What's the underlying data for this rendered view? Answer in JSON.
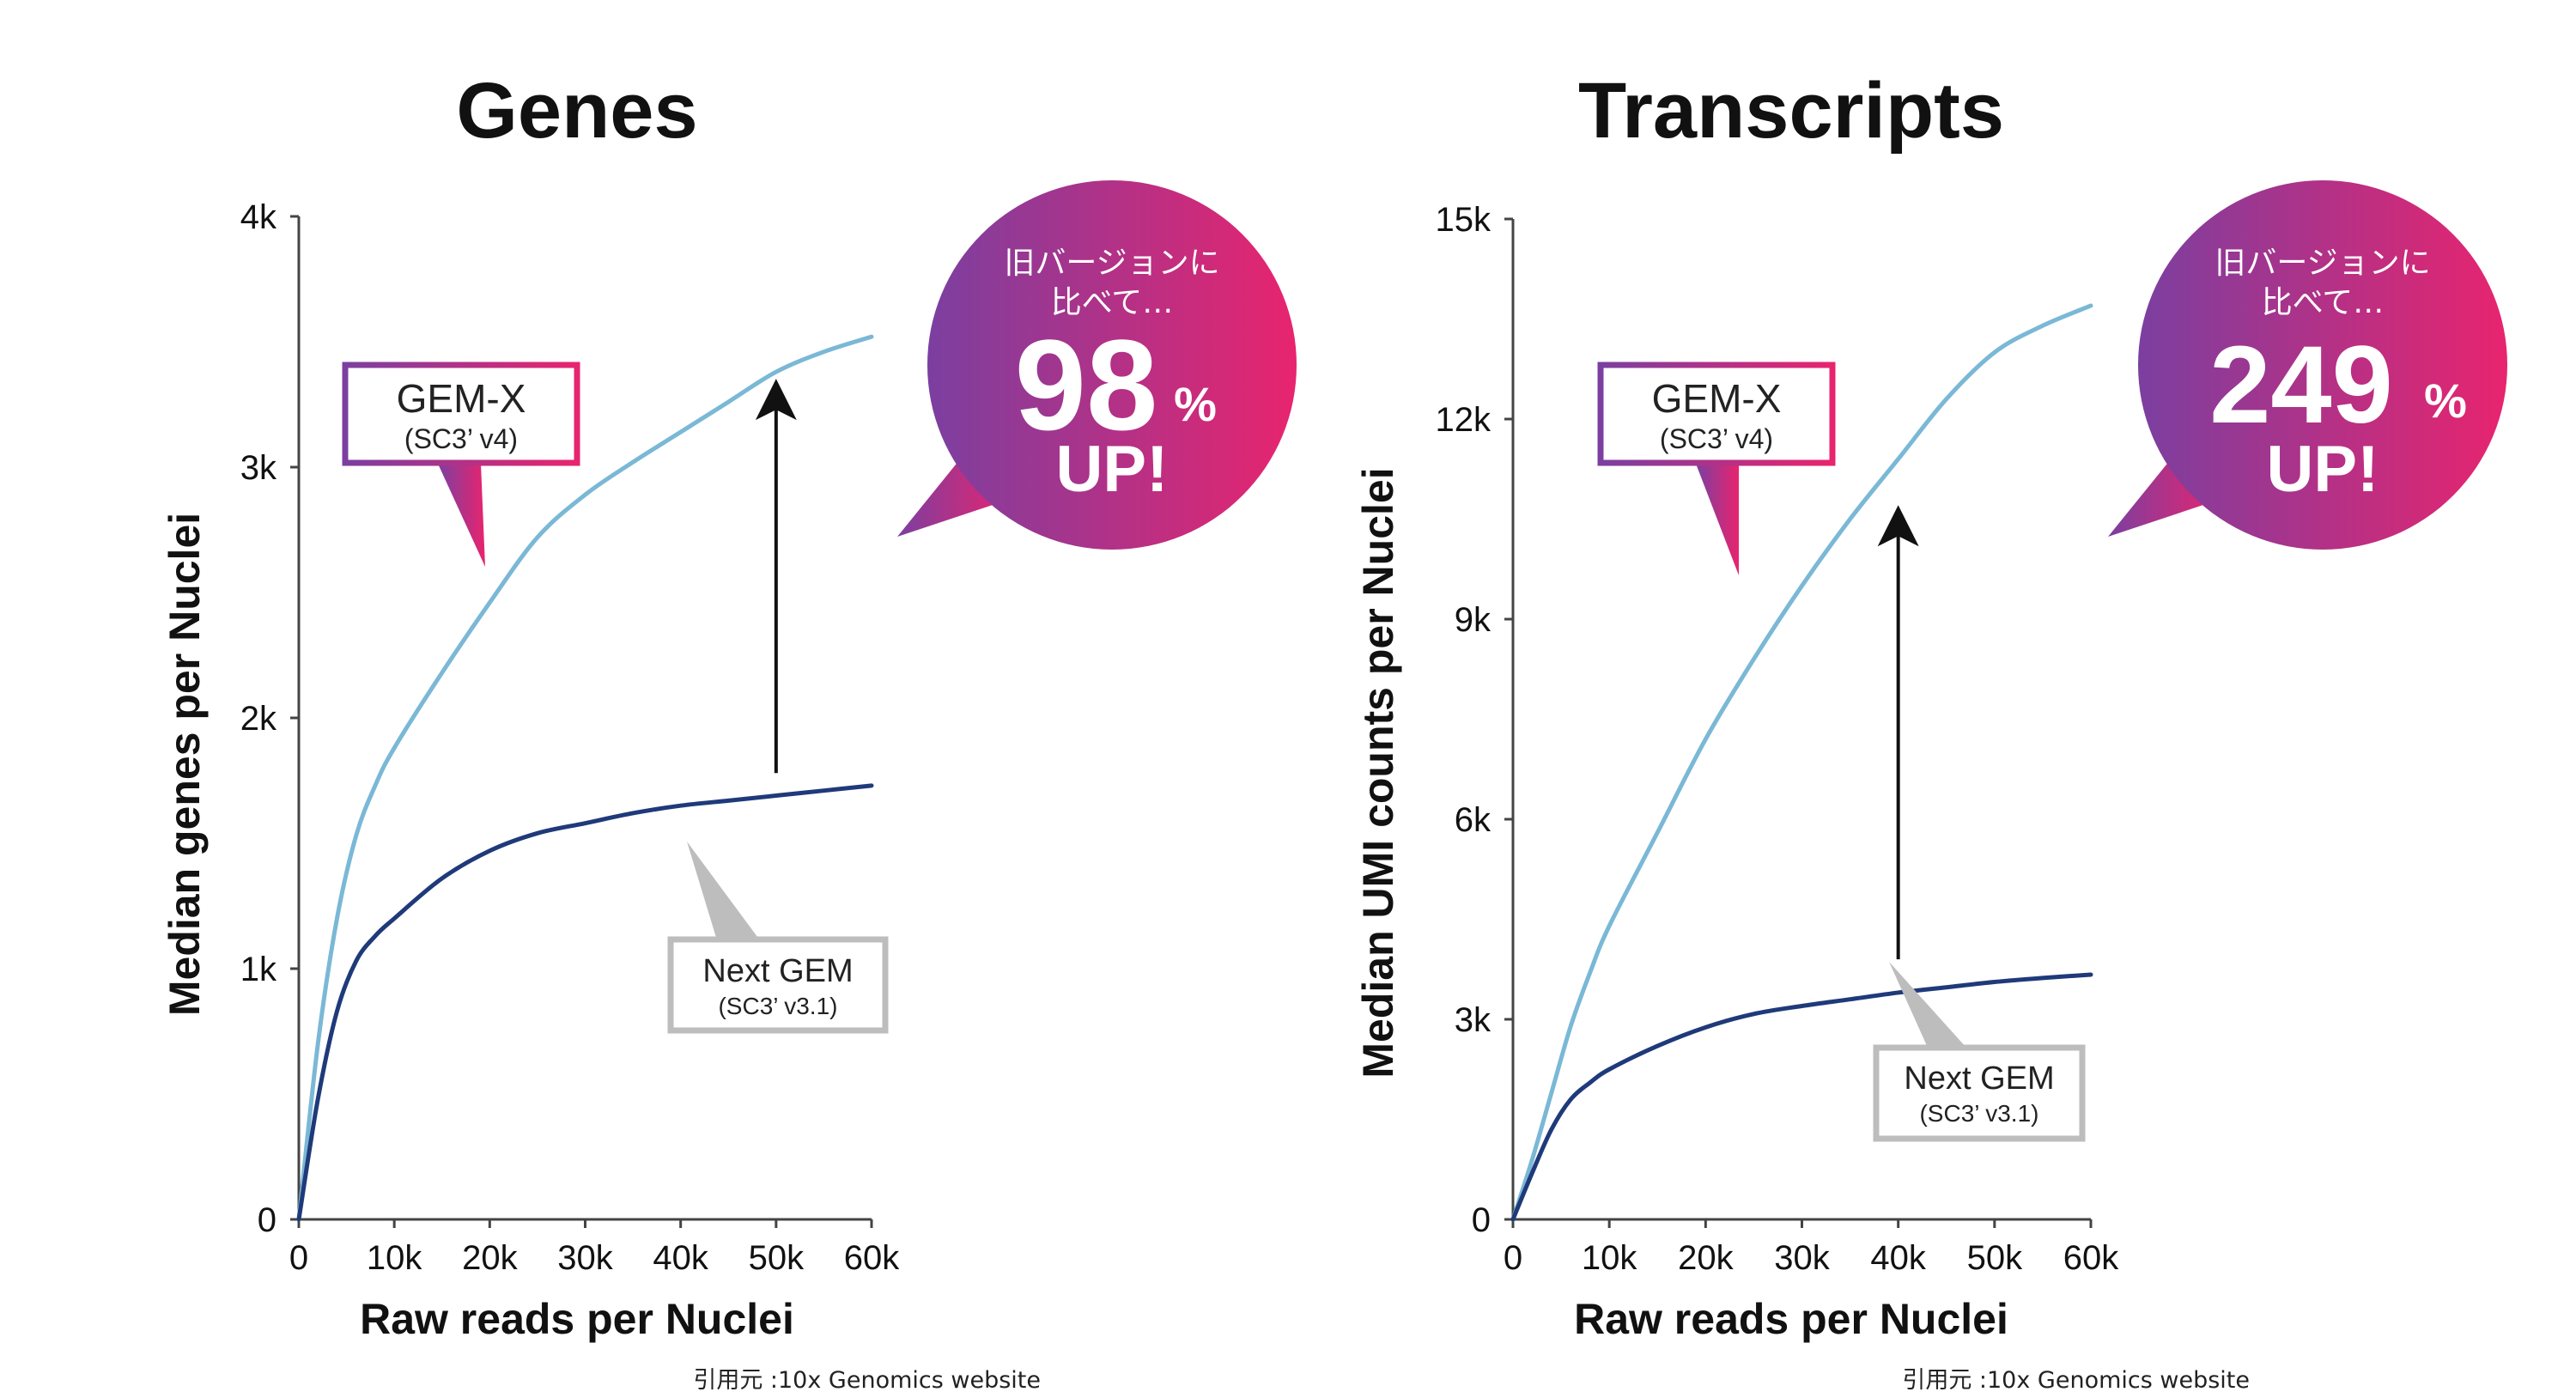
{
  "charts": [
    {
      "title": "Genes",
      "ylabel": "Median genes per Nuclei",
      "xlabel": "Raw reads per Nuclei",
      "gemx_box": {
        "main": "GEM-X",
        "sub": "(SC3’ v4)"
      },
      "nextgem_box": {
        "main": "Next GEM",
        "sub": "(SC3’ v3.1)"
      },
      "bubble": {
        "line1": "旧バージョンに",
        "line2": "比べて…",
        "number": "98",
        "percent": "%",
        "up": "UP!"
      },
      "source": "引用元 :10x Genomics website"
    },
    {
      "title": "Transcripts",
      "ylabel": "Median UMI counts per Nuclei",
      "xlabel": "Raw reads per Nuclei",
      "gemx_box": {
        "main": "GEM-X",
        "sub": "(SC3’ v4)"
      },
      "nextgem_box": {
        "main": "Next GEM",
        "sub": "(SC3’ v3.1)"
      },
      "bubble": {
        "line1": "旧バージョンに",
        "line2": "比べて…",
        "number": "249",
        "percent": "%",
        "up": "UP!"
      },
      "source": "引用元 :10x Genomics website"
    }
  ],
  "colors": {
    "gemx_line": "#7ab8d6",
    "nextgem_line": "#1f3a7a",
    "gradient_start": "#7b3fa0",
    "gradient_end": "#e8246e",
    "box_gray": "#bdbdbd",
    "axis": "#444444"
  },
  "chart_data": [
    {
      "type": "line",
      "title": "Genes",
      "xlabel": "Raw reads per Nuclei",
      "ylabel": "Median genes per Nuclei",
      "xlim": [
        0,
        60000
      ],
      "ylim": [
        0,
        4000
      ],
      "x_ticks": [
        0,
        10000,
        20000,
        30000,
        40000,
        50000,
        60000
      ],
      "x_tick_labels": [
        "0",
        "10k",
        "20k",
        "30k",
        "40k",
        "50k",
        "60k"
      ],
      "y_ticks": [
        0,
        1000,
        2000,
        3000,
        4000
      ],
      "y_tick_labels": [
        "0",
        "1k",
        "2k",
        "3k",
        "4k"
      ],
      "grid": false,
      "series": [
        {
          "name": "GEM-X (SC3’ v4)",
          "x": [
            0,
            2000,
            4000,
            6000,
            8000,
            10000,
            15000,
            20000,
            25000,
            30000,
            35000,
            40000,
            45000,
            50000,
            55000,
            60000
          ],
          "y": [
            0,
            700,
            1200,
            1530,
            1730,
            1880,
            2180,
            2460,
            2720,
            2890,
            3020,
            3140,
            3260,
            3380,
            3460,
            3520
          ]
        },
        {
          "name": "Next GEM (SC3’ v3.1)",
          "x": [
            0,
            2000,
            4000,
            6000,
            8000,
            10000,
            15000,
            20000,
            25000,
            30000,
            35000,
            40000,
            45000,
            50000,
            55000,
            60000
          ],
          "y": [
            0,
            480,
            830,
            1030,
            1130,
            1200,
            1360,
            1470,
            1540,
            1580,
            1620,
            1650,
            1670,
            1690,
            1710,
            1730
          ]
        }
      ],
      "annotation": {
        "arrow_x": 50000,
        "arrow_from": 1780,
        "arrow_to": 3270
      }
    },
    {
      "type": "line",
      "title": "Transcripts",
      "xlabel": "Raw reads per Nuclei",
      "ylabel": "Median UMI counts per Nuclei",
      "xlim": [
        0,
        60000
      ],
      "ylim": [
        0,
        15000
      ],
      "x_ticks": [
        0,
        10000,
        20000,
        30000,
        40000,
        50000,
        60000
      ],
      "x_tick_labels": [
        "0",
        "10k",
        "20k",
        "30k",
        "40k",
        "50k",
        "60k"
      ],
      "y_ticks": [
        0,
        3000,
        6000,
        9000,
        12000,
        15000
      ],
      "y_tick_labels": [
        "0",
        "3k",
        "6k",
        "9k",
        "12k",
        "15k"
      ],
      "grid": false,
      "series": [
        {
          "name": "GEM-X (SC3’ v4)",
          "x": [
            0,
            2000,
            4000,
            6000,
            8000,
            10000,
            15000,
            20000,
            25000,
            30000,
            35000,
            40000,
            45000,
            50000,
            55000,
            60000
          ],
          "y": [
            0,
            900,
            1900,
            2900,
            3700,
            4400,
            5800,
            7200,
            8400,
            9500,
            10500,
            11400,
            12300,
            13000,
            13400,
            13700
          ]
        },
        {
          "name": "Next GEM (SC3’ v3.1)",
          "x": [
            0,
            2000,
            4000,
            6000,
            8000,
            10000,
            15000,
            20000,
            25000,
            30000,
            35000,
            40000,
            45000,
            50000,
            55000,
            60000
          ],
          "y": [
            0,
            700,
            1350,
            1800,
            2050,
            2250,
            2600,
            2880,
            3080,
            3200,
            3300,
            3400,
            3480,
            3560,
            3620,
            3670
          ]
        }
      ],
      "annotation": {
        "arrow_x": 40000,
        "arrow_from": 3900,
        "arrow_to": 10400
      }
    }
  ]
}
